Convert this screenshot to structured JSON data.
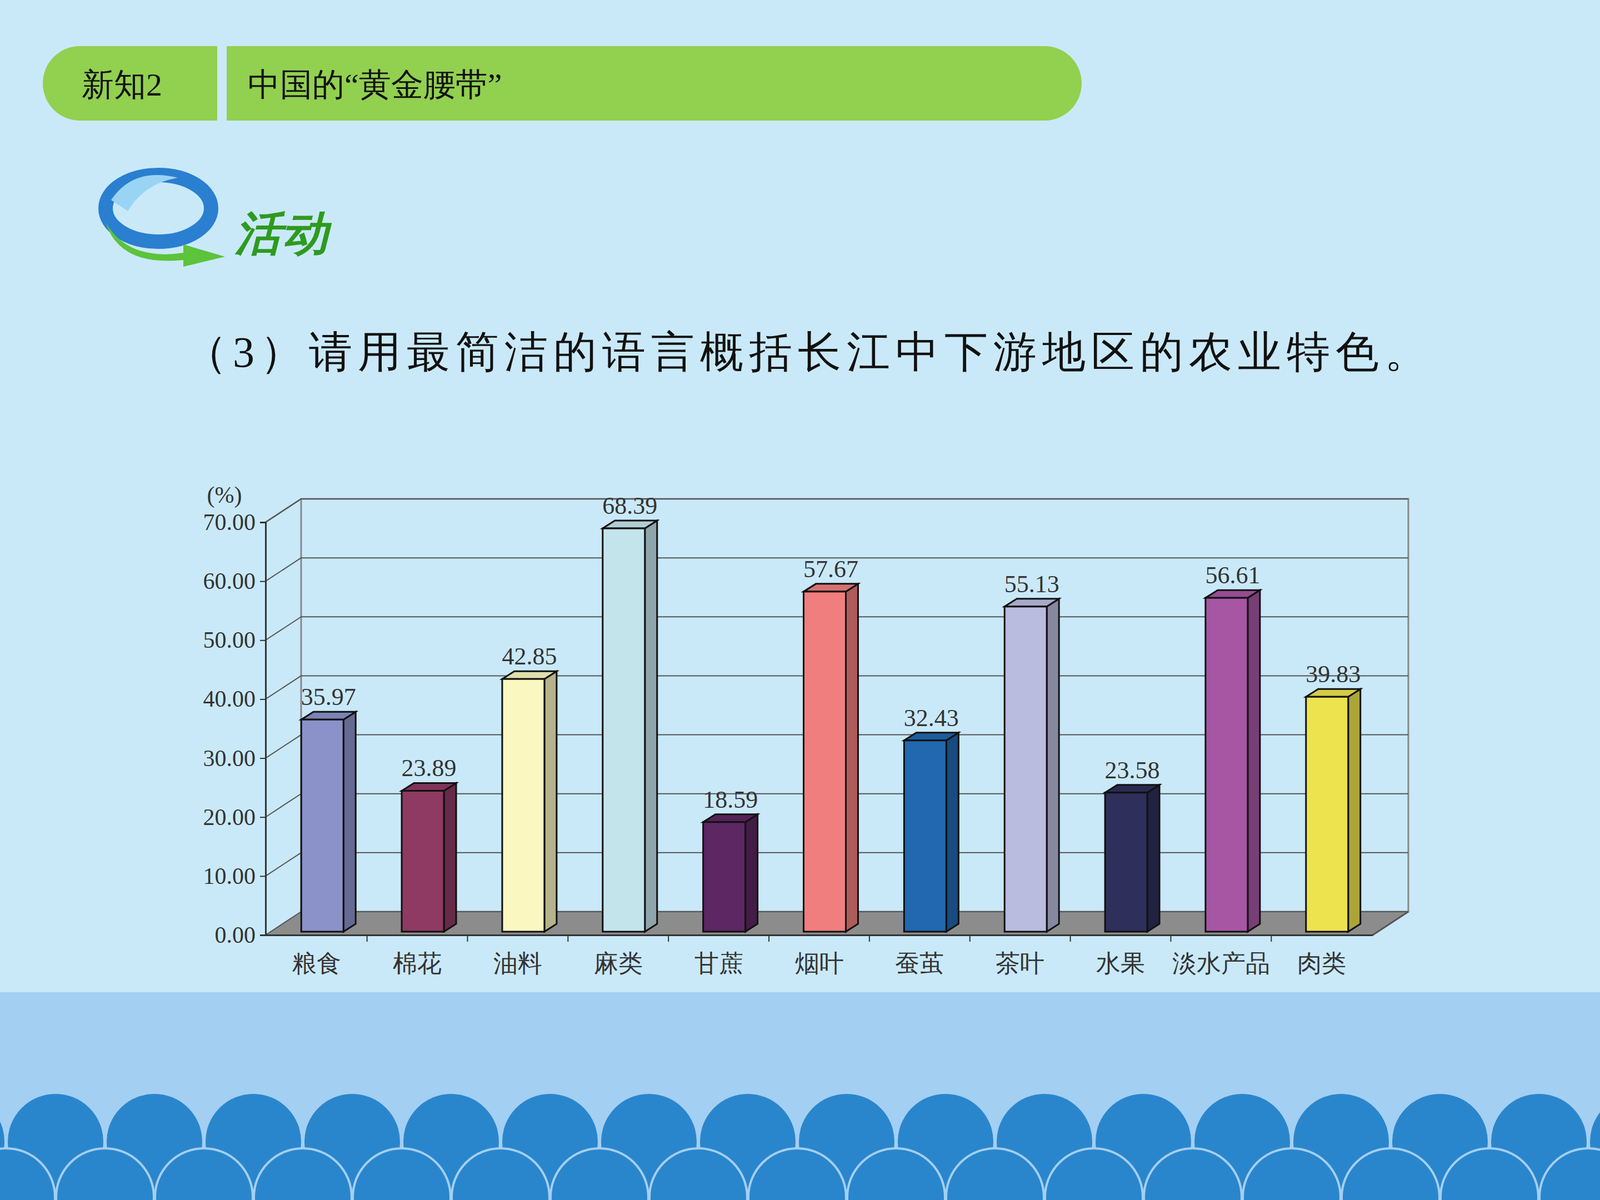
{
  "slide": {
    "section": "新知2",
    "heading": "中国的“黄金腰带”",
    "activity": "活动",
    "question": "（3）请用最简洁的语言概括长江中下游地区的农业特色。"
  },
  "chart_data": {
    "type": "bar",
    "y_label": "(%)",
    "categories": [
      "粮食",
      "棉花",
      "油料",
      "麻类",
      "甘蔗",
      "烟叶",
      "蚕茧",
      "茶叶",
      "水果",
      "淡水产品",
      "肉类"
    ],
    "values": [
      35.97,
      23.89,
      42.85,
      68.39,
      18.59,
      57.67,
      32.43,
      55.13,
      23.58,
      56.61,
      39.83
    ],
    "colors": [
      "#8a92c9",
      "#8e3a63",
      "#faf7c0",
      "#c4e4ec",
      "#5c2762",
      "#f07e7e",
      "#2168b0",
      "#b9bcdf",
      "#2e2f5a",
      "#a656a3",
      "#ece34f"
    ],
    "ylim": [
      0,
      70
    ],
    "yticks": [
      {
        "value": 0,
        "label": "0.00"
      },
      {
        "value": 10,
        "label": "10.00"
      },
      {
        "value": 20,
        "label": "20.00"
      },
      {
        "value": 30,
        "label": "30.00"
      },
      {
        "value": 40,
        "label": "40.00"
      },
      {
        "value": 50,
        "label": "50.00"
      },
      {
        "value": 60,
        "label": "60.00"
      },
      {
        "value": 70,
        "label": "70.00"
      }
    ],
    "grid": true,
    "data_labels": true
  }
}
